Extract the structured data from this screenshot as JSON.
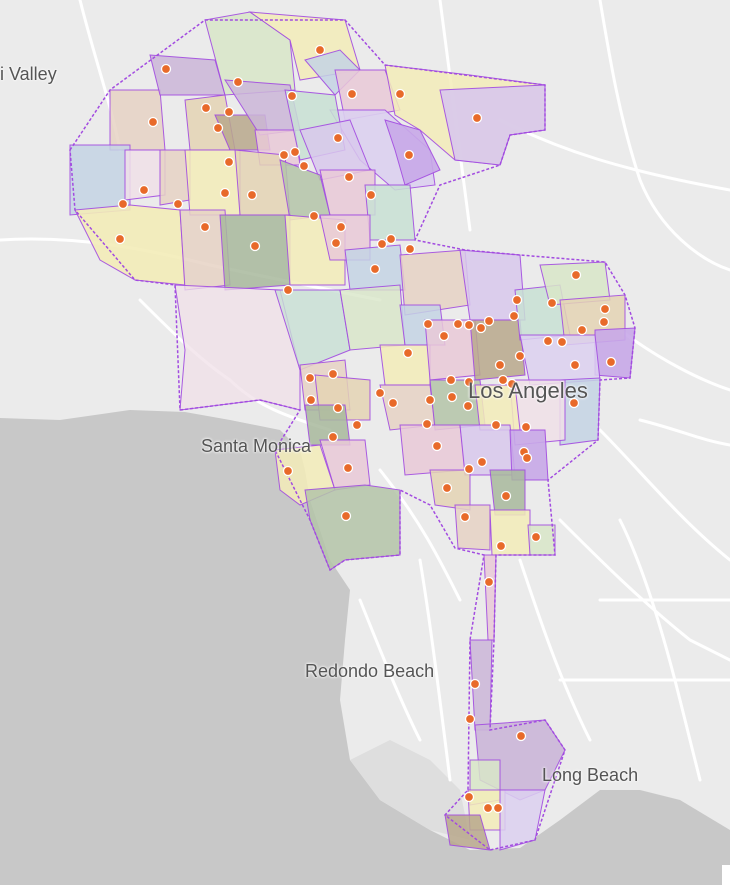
{
  "map": {
    "labels": {
      "valley": "i Valley",
      "santa_monica": "Santa Monica",
      "los_angeles": "Los Angeles",
      "redondo_beach": "Redondo Beach",
      "long_beach": "Long Beach"
    },
    "colors": {
      "land": "#ebebeb",
      "ocean": "#c8c8c8",
      "road": "#ffffff",
      "boundary": "#a24be0",
      "marker_fill": "#e86a2a",
      "marker_stroke": "#ffffff"
    },
    "district_palette": [
      "#cbb6d8",
      "#e6d2c4",
      "#d8e6c8",
      "#f3ecb8",
      "#c4d4e4",
      "#e9c9d7",
      "#b9a88c",
      "#d8c8ec",
      "#c8e0d4",
      "#e4d4b4",
      "#b4c4a8",
      "#f0e0e8",
      "#a8b89c",
      "#dcd0f0",
      "#e8dcc0"
    ]
  }
}
